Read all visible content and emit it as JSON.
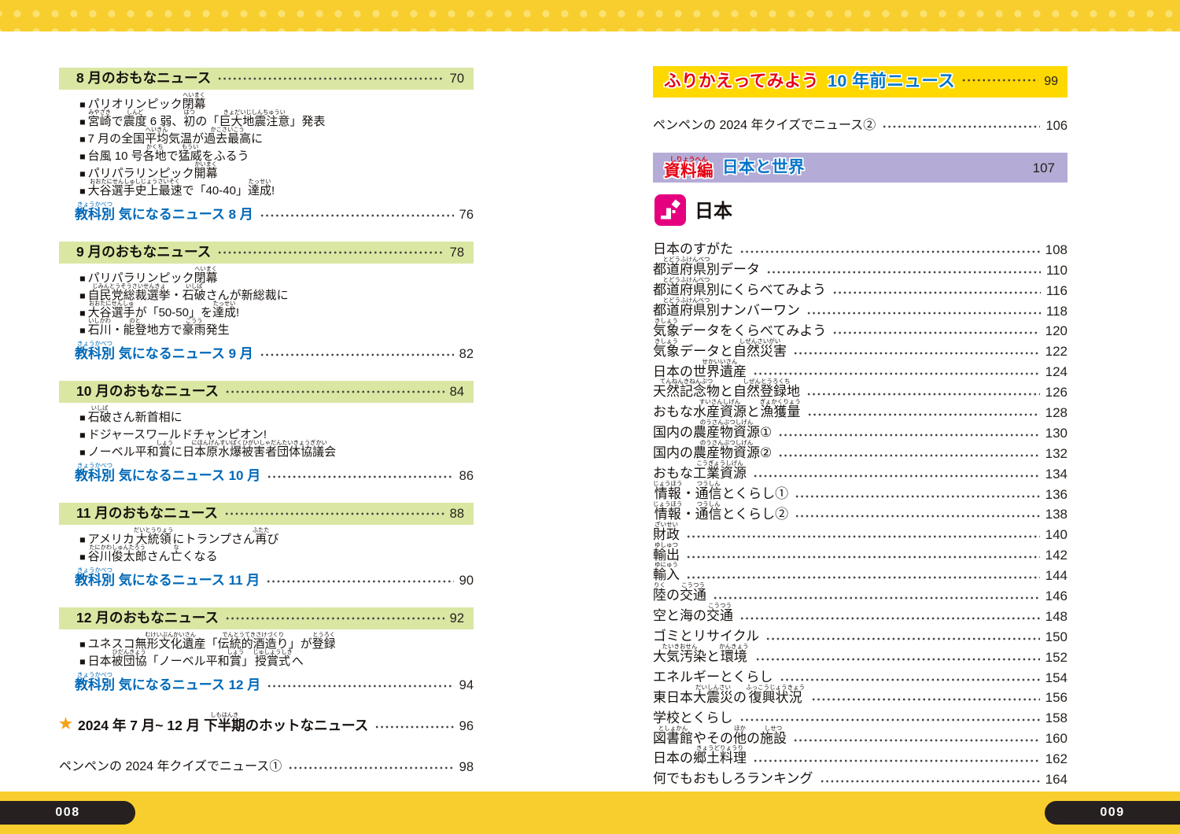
{
  "page": {
    "left_folio": "008",
    "right_folio": "009",
    "band_color": "#F8CE2E",
    "band_dot_color": "#FBE170"
  },
  "colors": {
    "month_bar_green": "#D9E7A3",
    "subject_blue": "#0068B7",
    "banner_yellow": "#FFD800",
    "banner_lavender": "#B4ACD6",
    "accent_red": "#E60012",
    "accent_blue": "#0075C8",
    "icon_pink": "#E4007F",
    "star_orange": "#F6A117",
    "folio_black": "#272020"
  },
  "left_page": {
    "sections": [
      {
        "title": "8 月のおもなニュース",
        "page": "70",
        "items": [
          [
            [
              "パリオリンピック",
              ""
            ],
            [
              "閉幕",
              "へいまく"
            ]
          ],
          [
            [
              "宮崎",
              "みやざき"
            ],
            [
              "で",
              ""
            ],
            [
              "震度",
              "しんど"
            ],
            [
              " 6 弱、",
              ""
            ],
            [
              "初",
              "はつ"
            ],
            [
              "の「",
              ""
            ],
            [
              "巨大地震注意",
              "きょだいじしんちゅうい"
            ],
            [
              "」発表",
              ""
            ]
          ],
          [
            [
              "7 月の全国",
              ""
            ],
            [
              "平均",
              "へいきん"
            ],
            [
              "気温が",
              ""
            ],
            [
              "過去最高",
              "かこさいこう"
            ],
            [
              "に",
              ""
            ]
          ],
          [
            [
              "台風 10 号",
              ""
            ],
            [
              "各地",
              "かくち"
            ],
            [
              "で",
              ""
            ],
            [
              "猛威",
              "もうい"
            ],
            [
              "をふるう",
              ""
            ]
          ],
          [
            [
              "パリパラリンピック",
              ""
            ],
            [
              "開幕",
              "かいまく"
            ]
          ],
          [
            [
              "大谷選手史上最速",
              "おおたにせんしゅしじょうさいそく"
            ],
            [
              "で「40-40」",
              ""
            ],
            [
              "達成",
              "たっせい"
            ],
            [
              "!",
              ""
            ]
          ]
        ],
        "subject": {
          "segments": [
            [
              "教科別",
              "きょうかべつ"
            ],
            [
              " 気になるニュース 8 月",
              ""
            ]
          ],
          "page": "76"
        }
      },
      {
        "title": "9 月のおもなニュース",
        "page": "78",
        "items": [
          [
            [
              "パリパラリンピック",
              ""
            ],
            [
              "閉幕",
              "へいまく"
            ]
          ],
          [
            [
              "自民党総裁選挙",
              "じみんとうそうさいせんきょ"
            ],
            [
              "・",
              ""
            ],
            [
              "石破",
              "いしば"
            ],
            [
              "さんが新総裁に",
              ""
            ]
          ],
          [
            [
              "大谷選手",
              "おおたにせんしゅ"
            ],
            [
              "が「50-50」を",
              ""
            ],
            [
              "達成",
              "たっせい"
            ],
            [
              "!",
              ""
            ]
          ],
          [
            [
              "石川",
              "いしかわ"
            ],
            [
              "・",
              ""
            ],
            [
              "能登",
              "のと"
            ],
            [
              "地方で",
              ""
            ],
            [
              "豪雨",
              "ごうう"
            ],
            [
              "発生",
              ""
            ]
          ]
        ],
        "subject": {
          "segments": [
            [
              "教科別",
              "きょうかべつ"
            ],
            [
              " 気になるニュース 9 月",
              ""
            ]
          ],
          "page": "82"
        }
      },
      {
        "title": "10 月のおもなニュース",
        "page": "84",
        "items": [
          [
            [
              "石破",
              "いしば"
            ],
            [
              "さん新首相に",
              ""
            ]
          ],
          [
            [
              "ドジャースワールドチャンピオン!",
              ""
            ]
          ],
          [
            [
              "ノーベル平和",
              ""
            ],
            [
              "賞",
              "しょう"
            ],
            [
              "に",
              ""
            ],
            [
              "日本原水爆被害者団体協議会",
              "にほんげんすいばくひがいしゃだんたいきょうぎかい"
            ]
          ]
        ],
        "subject": {
          "segments": [
            [
              "教科別",
              "きょうかべつ"
            ],
            [
              " 気になるニュース 10 月",
              ""
            ]
          ],
          "page": "86"
        }
      },
      {
        "title": "11 月のおもなニュース",
        "page": "88",
        "items": [
          [
            [
              "アメリカ",
              ""
            ],
            [
              "大統領",
              "だいとうりょう"
            ],
            [
              "にトランプさん",
              ""
            ],
            [
              "再",
              "ふたた"
            ],
            [
              "び",
              ""
            ]
          ],
          [
            [
              "谷川俊太郎",
              "たにかわしゅんたろう"
            ],
            [
              "さん",
              ""
            ],
            [
              "亡",
              "な"
            ],
            [
              "くなる",
              ""
            ]
          ]
        ],
        "subject": {
          "segments": [
            [
              "教科別",
              "きょうかべつ"
            ],
            [
              " 気になるニュース 11 月",
              ""
            ]
          ],
          "page": "90"
        }
      },
      {
        "title": "12 月のおもなニュース",
        "page": "92",
        "items": [
          [
            [
              "ユネスコ",
              ""
            ],
            [
              "無形文化遺産",
              "むけいぶんかいさん"
            ],
            [
              "「",
              ""
            ],
            [
              "伝統的酒造り",
              "でんとうてきさけづくり"
            ],
            [
              "」が",
              ""
            ],
            [
              "登録",
              "とうろく"
            ]
          ],
          [
            [
              "日本",
              ""
            ],
            [
              "被団協",
              "ひだんきょう"
            ],
            [
              "「ノーベル平和",
              ""
            ],
            [
              "賞",
              "しょう"
            ],
            [
              "」",
              ""
            ],
            [
              "授賞式",
              "じゅしょうしき"
            ],
            [
              "へ",
              ""
            ]
          ]
        ],
        "subject": {
          "segments": [
            [
              "教科別",
              "きょうかべつ"
            ],
            [
              " 気になるニュース 12 月",
              ""
            ]
          ],
          "page": "94"
        }
      }
    ],
    "hot_news": {
      "star": "★",
      "segments": [
        [
          "2024 年 7 月~ 12 月 ",
          ""
        ],
        [
          "下半期",
          "しもはんき"
        ],
        [
          "のホットなニュース",
          ""
        ]
      ],
      "page": "96"
    },
    "quiz": {
      "label": "ペンペンの 2024 年クイズでニュース①",
      "page": "98"
    }
  },
  "right_page": {
    "review_banner": {
      "label_red": "ふりかえってみよう",
      "label_blue": "10 年前ニュース",
      "page": "99"
    },
    "quiz2": {
      "label": "ペンペンの 2024 年クイズでニュース②",
      "page": "106"
    },
    "shiryo_banner": {
      "segments_red": [
        [
          "資料編",
          "しりょうへん"
        ]
      ],
      "label_blue": "日本と世界",
      "page": "107"
    },
    "japan_heading": {
      "label": "日本",
      "icon": "japan-map-icon"
    },
    "items": [
      {
        "segments": [
          [
            "日本のすがた",
            ""
          ]
        ],
        "page": "108"
      },
      {
        "segments": [
          [
            "都道府県別",
            "とどうふけんべつ"
          ],
          [
            "データ",
            ""
          ]
        ],
        "page": "110"
      },
      {
        "segments": [
          [
            "都道府県別",
            "とどうふけんべつ"
          ],
          [
            "にくらべてみよう",
            ""
          ]
        ],
        "page": "116"
      },
      {
        "segments": [
          [
            "都道府県別",
            "とどうふけんべつ"
          ],
          [
            "ナンバーワン",
            ""
          ]
        ],
        "page": "118"
      },
      {
        "segments": [
          [
            "気象",
            "きしょう"
          ],
          [
            "データをくらべてみよう",
            ""
          ]
        ],
        "page": "120"
      },
      {
        "segments": [
          [
            "気象",
            "きしょう"
          ],
          [
            "データと",
            ""
          ],
          [
            "自然災害",
            "しぜんさいがい"
          ]
        ],
        "page": "122"
      },
      {
        "segments": [
          [
            "日本の",
            ""
          ],
          [
            "世界遺産",
            "せかいいさん"
          ]
        ],
        "page": "124"
      },
      {
        "segments": [
          [
            "天然記念物",
            "てんねんきねんぶつ"
          ],
          [
            "と",
            ""
          ],
          [
            "自然登録地",
            "しぜんとうろくち"
          ]
        ],
        "page": "126"
      },
      {
        "segments": [
          [
            "おもな",
            ""
          ],
          [
            "水産資源",
            "すいさんしげん"
          ],
          [
            "と",
            ""
          ],
          [
            "漁獲量",
            "ぎょかくりょう"
          ]
        ],
        "page": "128"
      },
      {
        "segments": [
          [
            "国内の",
            ""
          ],
          [
            "農産物資源",
            "のうさんぶつしげん"
          ],
          [
            "①",
            ""
          ]
        ],
        "page": "130"
      },
      {
        "segments": [
          [
            "国内の",
            ""
          ],
          [
            "農産物資源",
            "のうさんぶつしげん"
          ],
          [
            "②",
            ""
          ]
        ],
        "page": "132"
      },
      {
        "segments": [
          [
            "おもな",
            ""
          ],
          [
            "工業資源",
            "こうぎょうしげん"
          ]
        ],
        "page": "134"
      },
      {
        "segments": [
          [
            "情報",
            "じょうほう"
          ],
          [
            "・",
            ""
          ],
          [
            "通信",
            "つうしん"
          ],
          [
            "とくらし①",
            ""
          ]
        ],
        "page": "136"
      },
      {
        "segments": [
          [
            "情報",
            "じょうほう"
          ],
          [
            "・",
            ""
          ],
          [
            "通信",
            "つうしん"
          ],
          [
            "とくらし②",
            ""
          ]
        ],
        "page": "138"
      },
      {
        "segments": [
          [
            "財政",
            "ざいせい"
          ],
          [
            " ",
            ""
          ]
        ],
        "page": "140"
      },
      {
        "segments": [
          [
            "輸出",
            "ゆしゅつ"
          ],
          [
            " ",
            ""
          ]
        ],
        "page": "142"
      },
      {
        "segments": [
          [
            "輸入",
            "ゆにゅう"
          ],
          [
            " ",
            ""
          ]
        ],
        "page": "144"
      },
      {
        "segments": [
          [
            "陸",
            "りく"
          ],
          [
            "の",
            ""
          ],
          [
            "交通",
            "こうつう"
          ]
        ],
        "page": "146"
      },
      {
        "segments": [
          [
            "空と海の",
            ""
          ],
          [
            "交通",
            "こうつう"
          ]
        ],
        "page": "148"
      },
      {
        "segments": [
          [
            "ゴミとリサイクル",
            ""
          ]
        ],
        "page": "150"
      },
      {
        "segments": [
          [
            "大気汚染",
            "たいきおせん"
          ],
          [
            "と",
            ""
          ],
          [
            "環境",
            "かんきょう"
          ]
        ],
        "page": "152"
      },
      {
        "segments": [
          [
            "エネルギーとくらし",
            ""
          ]
        ],
        "page": "154"
      },
      {
        "segments": [
          [
            "東日本",
            ""
          ],
          [
            "大震災",
            "だいしんさい"
          ],
          [
            "の",
            ""
          ],
          [
            "復興状況",
            "ふっこうじょうきょう"
          ]
        ],
        "page": "156"
      },
      {
        "segments": [
          [
            "学校とくらし",
            ""
          ]
        ],
        "page": "158"
      },
      {
        "segments": [
          [
            "図書館",
            "としょかん"
          ],
          [
            "やその",
            ""
          ],
          [
            "他",
            "ほか"
          ],
          [
            "の",
            ""
          ],
          [
            "施設",
            "しせつ"
          ]
        ],
        "page": "160"
      },
      {
        "segments": [
          [
            "日本の",
            ""
          ],
          [
            "郷土料理",
            "きょうどりょうり"
          ]
        ],
        "page": "162"
      },
      {
        "segments": [
          [
            "何でもおもしろランキング",
            ""
          ]
        ],
        "page": "164"
      }
    ]
  }
}
